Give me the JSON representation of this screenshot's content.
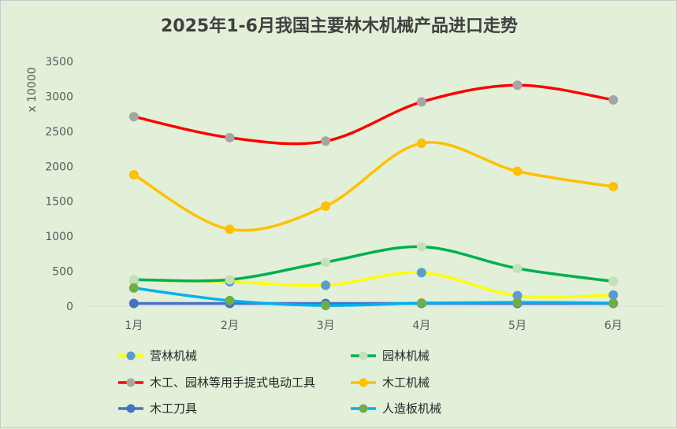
{
  "chart_data": {
    "type": "line",
    "title": "2025年1-6月我国主要林木机械产品进口走势",
    "ylabel": "x 10000",
    "xlabel": "",
    "categories": [
      "1月",
      "2月",
      "3月",
      "4月",
      "5月",
      "6月"
    ],
    "ylim": [
      0,
      3500
    ],
    "yticks": [
      0,
      500,
      1000,
      1500,
      2000,
      2500,
      3000,
      3500
    ],
    "grid": false,
    "legend_position": "bottom",
    "series": [
      {
        "name": "营林机械",
        "line_color": "#ffff00",
        "marker_color": "#5b9bd5",
        "values": [
          370,
          350,
          300,
          480,
          150,
          160
        ]
      },
      {
        "name": "园林机械",
        "line_color": "#00b050",
        "marker_color": "#c5e0b4",
        "values": [
          380,
          380,
          630,
          850,
          540,
          355
        ]
      },
      {
        "name": "木工、园林等用手提式电动工具",
        "line_color": "#ff0000",
        "marker_color": "#a5a5a5",
        "values": [
          2710,
          2410,
          2360,
          2920,
          3160,
          2950
        ]
      },
      {
        "name": "木工机械",
        "line_color": "#ffc000",
        "marker_color": "#ffc000",
        "values": [
          1880,
          1100,
          1430,
          2330,
          1930,
          1710
        ]
      },
      {
        "name": "木工刀具",
        "line_color": "#4472c4",
        "marker_color": "#4472c4",
        "values": [
          40,
          40,
          40,
          40,
          40,
          40
        ]
      },
      {
        "name": "人造板机械",
        "line_color": "#00b0f0",
        "marker_color": "#70ad47",
        "values": [
          260,
          80,
          10,
          45,
          55,
          45
        ]
      }
    ]
  }
}
